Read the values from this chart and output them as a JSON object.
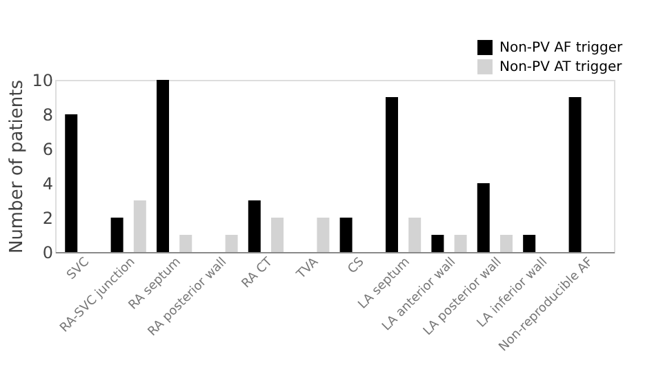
{
  "chart_data": {
    "type": "bar",
    "ylabel": "Number of patients",
    "categories": [
      "SVC",
      "RA-SVC junction",
      "RA septum",
      "RA posterior wall",
      "RA CT",
      "TVA",
      "CS",
      "LA septum",
      "LA anterior wall",
      "LA posterior wall",
      "LA inferior wall",
      "Non-reproducible AF"
    ],
    "series": [
      {
        "name": "Non-PV AF trigger",
        "color": "#000000",
        "values": [
          8,
          2,
          10,
          0,
          3,
          0,
          2,
          9,
          1,
          4,
          1,
          9
        ]
      },
      {
        "name": "Non-PV AT trigger",
        "color": "#d3d3d3",
        "values": [
          0,
          3,
          1,
          1,
          2,
          2,
          0,
          2,
          1,
          1,
          0,
          0
        ]
      }
    ],
    "ylim": [
      0,
      10
    ],
    "yticks": [
      0,
      2,
      4,
      6,
      8,
      10
    ],
    "grid": false,
    "legend": "top right"
  }
}
